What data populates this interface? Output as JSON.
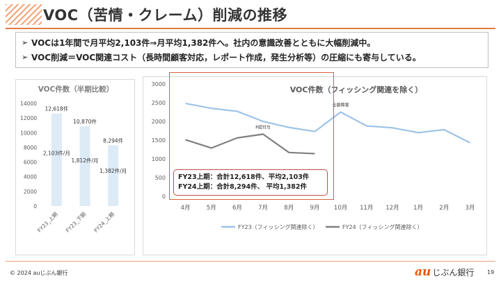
{
  "page": {
    "title": "VOC（苦情・クレーム）削減の推移",
    "bullets": [
      "VOCは1年間で月平均2,103件⇒月平均1,382件へ。社内の意識改善とともに大幅削減中。",
      "VOC削減＝VOC関連コスト（長時間顧客対応，レポート作成，発生分析等）の圧縮にも寄与している。"
    ],
    "bullet_icon": "arrow-right-icon",
    "copyright": "© 2024 auじぶん銀行",
    "logo_mark": "au",
    "logo_name": "じぶん銀行",
    "page_number": "19",
    "colors": {
      "accent": "#e27a3f",
      "bar": "#ddebf7",
      "fy23": "#9dc3e6",
      "fy24": "#7f7f7f",
      "annotation_border": "#c0504d",
      "logo": "#eb5505"
    }
  },
  "chart_data": [
    {
      "type": "bar",
      "title": "VOC件数（半期比較）",
      "categories": [
        "FY23_上期",
        "FY23_下期",
        "FY24_上期"
      ],
      "values": [
        12618,
        10870,
        8294
      ],
      "value_labels": [
        "12,618件",
        "10,870件",
        "8,294件"
      ],
      "monthly_labels": [
        "2,103件/月",
        "1,812件/月",
        "1,382件/月"
      ],
      "ylim": [
        0,
        14000
      ],
      "yticks": [
        0,
        2000,
        4000,
        6000,
        8000,
        10000,
        12000,
        14000
      ],
      "ytick_labels": [
        "0",
        "2000",
        "4000",
        "6000",
        "8000",
        "10000",
        "12000",
        "14000"
      ],
      "grid": false,
      "legend": "none"
    },
    {
      "type": "line",
      "title": "VOC件数（フィッシング関連を除く）",
      "categories": [
        "4月",
        "5月",
        "6月",
        "7月",
        "8月",
        "9月",
        "10月",
        "11月",
        "12月",
        "1月",
        "2月",
        "3月"
      ],
      "series": [
        {
          "name": "FY23（フィッシング関連除く）",
          "values": [
            2480,
            2350,
            2270,
            2000,
            1840,
            1730,
            2250,
            1880,
            1830,
            1700,
            1780,
            1430
          ]
        },
        {
          "name": "FY24（フィッシング関連除く）",
          "values": [
            1510,
            1290,
            1560,
            1660,
            1170,
            1140,
            null,
            null,
            null,
            null,
            null,
            null
          ]
        }
      ],
      "ylim": [
        0,
        3000
      ],
      "yticks": [
        0,
        500,
        1000,
        1500,
        2000,
        2500,
        3000
      ],
      "ytick_labels": [
        "0",
        "500",
        "1000",
        "1500",
        "2000",
        "2500",
        "3000"
      ],
      "grid": false,
      "legend": "bottom",
      "annotations": [
        {
          "text": "全銀障害",
          "series": 0,
          "index": 6
        },
        {
          "text": "P誤付与",
          "series": 1,
          "index": 3
        }
      ],
      "summary_box": [
        "FY23上期：合計12,618件、平均2,103件",
        "FY24上期：合計8,294件、 平均1,382件"
      ]
    }
  ]
}
